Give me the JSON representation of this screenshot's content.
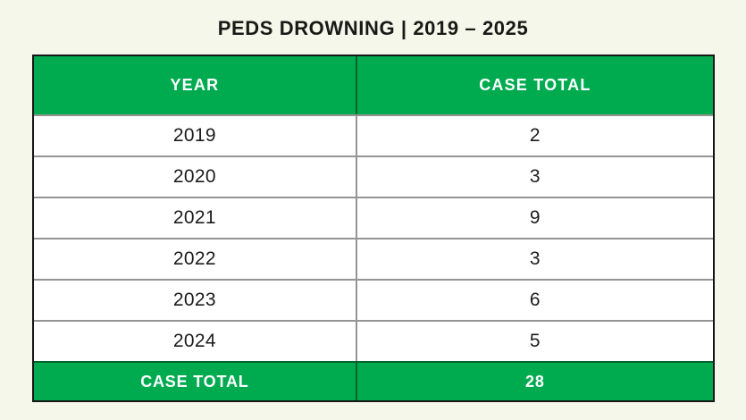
{
  "page": {
    "background_color": "#f4f7ea",
    "accent_color": "#00ab50"
  },
  "title": "PEDS DROWNING | 2019 – 2025",
  "table": {
    "header": {
      "year_label": "YEAR",
      "total_label": "CASE TOTAL"
    },
    "rows": [
      {
        "year": "2019",
        "total": "2"
      },
      {
        "year": "2020",
        "total": "3"
      },
      {
        "year": "2021",
        "total": "9"
      },
      {
        "year": "2022",
        "total": "3"
      },
      {
        "year": "2023",
        "total": "6"
      },
      {
        "year": "2024",
        "total": "5"
      }
    ],
    "footer": {
      "label": "CASE TOTAL",
      "value": "28"
    }
  },
  "chart_data": {
    "type": "table",
    "title": "PEDS DROWNING | 2019 – 2025",
    "columns": [
      "YEAR",
      "CASE TOTAL"
    ],
    "categories": [
      "2019",
      "2020",
      "2021",
      "2022",
      "2023",
      "2024"
    ],
    "values": [
      2,
      3,
      9,
      3,
      6,
      5
    ],
    "total_label": "CASE TOTAL",
    "total": 28
  }
}
